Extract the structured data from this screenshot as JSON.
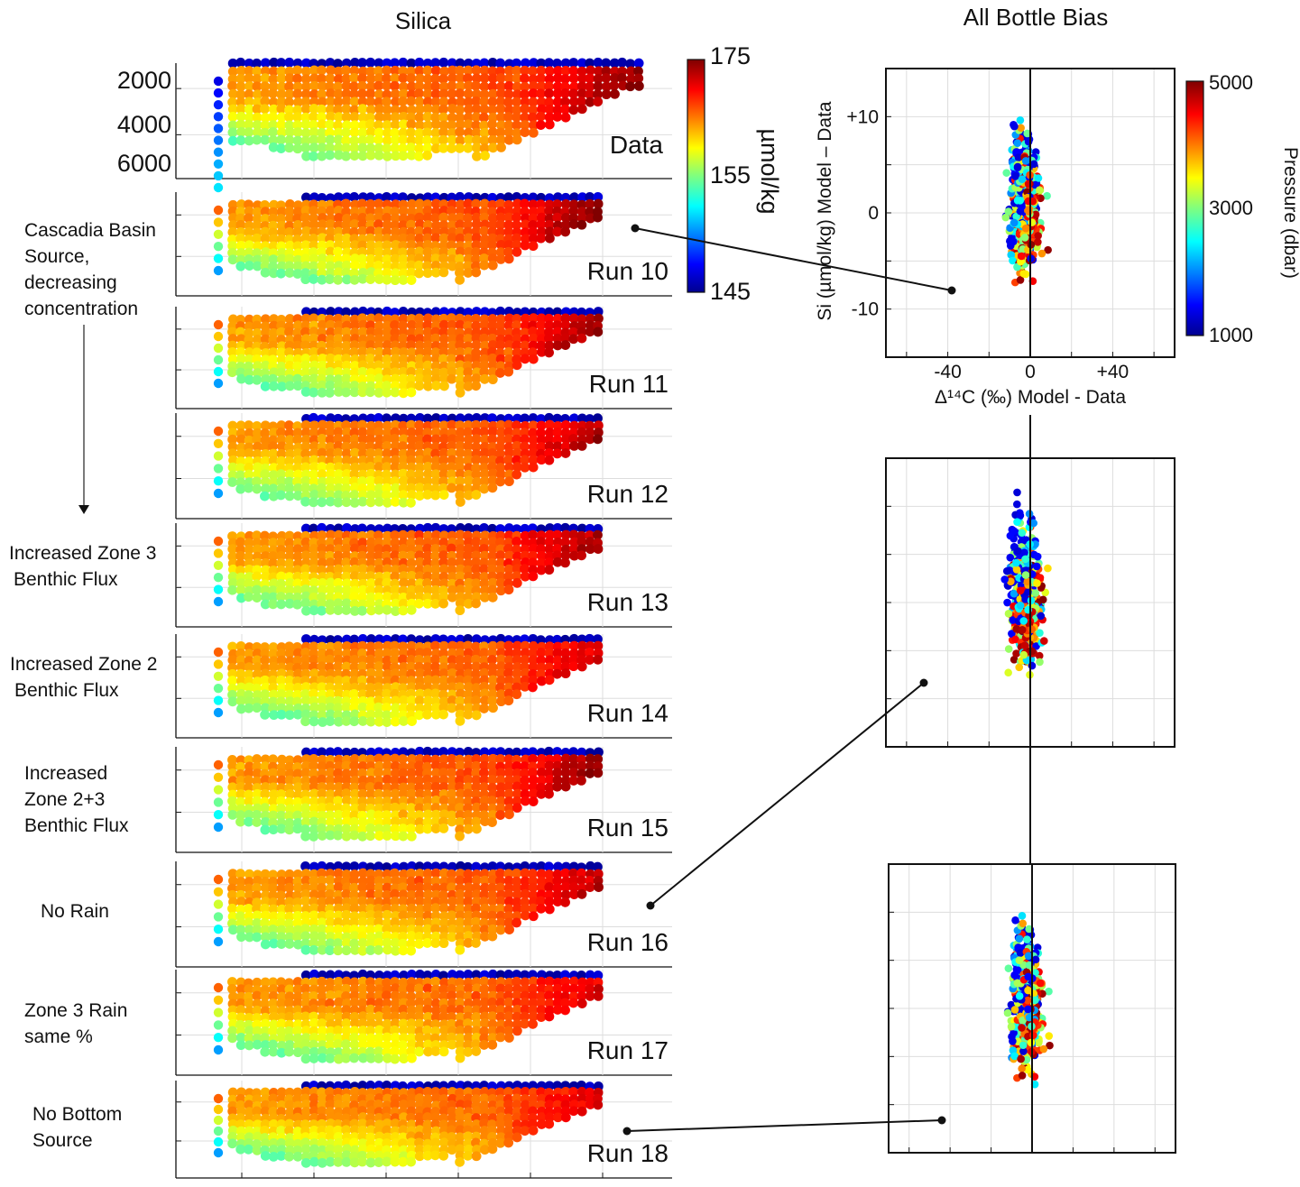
{
  "chart_data": [
    {
      "type": "scatter",
      "title": "Silica",
      "variable": "Silica",
      "colorbar": {
        "min": 145,
        "max": 175,
        "ticks": [
          "175",
          "155",
          "145"
        ],
        "label": "µmol/kg",
        "colormap": "jet"
      },
      "depth_ticks": [
        "2000",
        "4000",
        "6000"
      ],
      "panels": [
        {
          "name": "Data",
          "label": "Data",
          "annotation": ""
        },
        {
          "name": "Run 10",
          "label": "Run 10",
          "annotation": "Cascadia Basin Source, decreasing concentration"
        },
        {
          "name": "Run 11",
          "label": "Run 11",
          "annotation": ""
        },
        {
          "name": "Run 12",
          "label": "Run 12",
          "annotation": ""
        },
        {
          "name": "Run 13",
          "label": "Run 13",
          "annotation": "Increased Zone 3 Benthic Flux"
        },
        {
          "name": "Run 14",
          "label": "Run 14",
          "annotation": "Increased Zone 2 Benthic Flux"
        },
        {
          "name": "Run 15",
          "label": "Run 15",
          "annotation": "Increased Zone 2+3 Benthic Flux"
        },
        {
          "name": "Run 16",
          "label": "Run 16",
          "annotation": "No Rain"
        },
        {
          "name": "Run 17",
          "label": "Run 17",
          "annotation": "Zone 3 Rain same %"
        },
        {
          "name": "Run 18",
          "label": "Run 18",
          "annotation": "No Bottom Source"
        }
      ]
    },
    {
      "type": "scatter",
      "title": "All Bottle Bias",
      "xlabel": "Δ¹⁴C (‰) Model - Data",
      "ylabel": "Si (µmol/kg) Model – Data",
      "xlim": [
        -70,
        70
      ],
      "ylim": [
        -15,
        15
      ],
      "xticks": [
        "-40",
        "0",
        "+40"
      ],
      "yticks": [
        "+10",
        "0",
        "-10"
      ],
      "colorbar": {
        "min": 1000,
        "max": 5000,
        "ticks": [
          "5000",
          "3000",
          "1000"
        ],
        "label": "Pressure (dbar)",
        "colormap": "jet"
      },
      "panels": [
        {
          "name": "Run 10 bias",
          "linked_run": "Run 10"
        },
        {
          "name": "Run 16 bias",
          "linked_run": "Run 16"
        },
        {
          "name": "Run 18 bias",
          "linked_run": "Run 18"
        }
      ]
    }
  ]
}
